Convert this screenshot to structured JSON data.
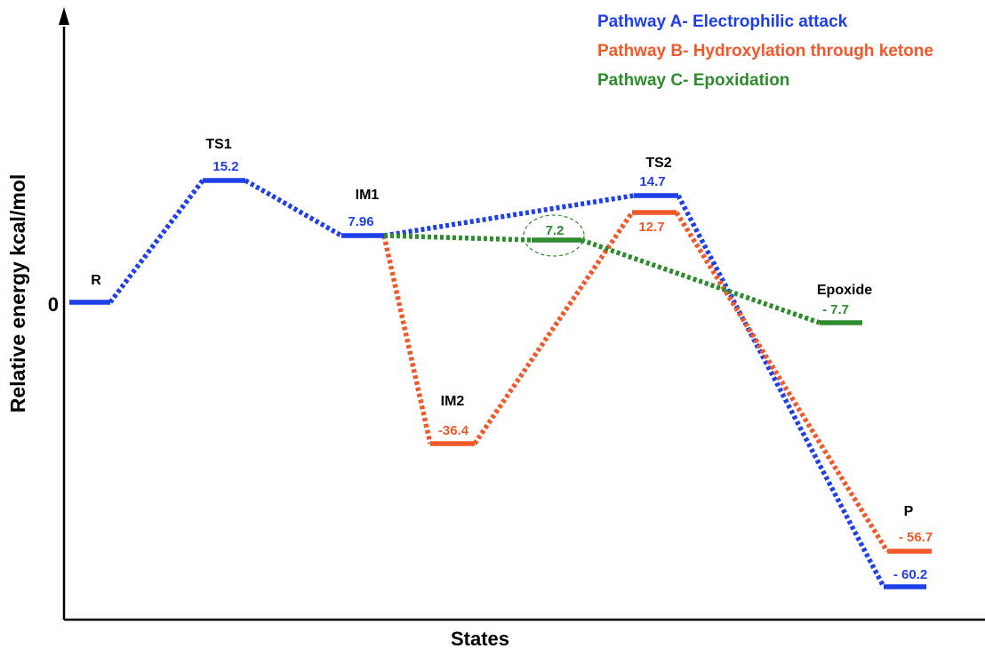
{
  "axes": {
    "ylabel": "Relative energy kcal/mol",
    "xlabel": "States",
    "zero_tick": "0"
  },
  "legend": [
    {
      "text": "Pathway A- Electrophilic attack",
      "color": "#1f3fe8"
    },
    {
      "text": "Pathway B- Hydroxylation through ketone",
      "color": "#f05a2a"
    },
    {
      "text": "Pathway C- Epoxidation",
      "color": "#2e8b2e"
    }
  ],
  "colors": {
    "A": "#1f3fe8",
    "B": "#f05a2a",
    "C": "#2e8b2e",
    "axis": "#000000"
  },
  "states": {
    "R": {
      "name": "R",
      "energy": ""
    },
    "TS1": {
      "name": "TS1",
      "energy": "15.2"
    },
    "IM1": {
      "name": "IM1",
      "energy": "7.96"
    },
    "IM2": {
      "name": "IM2",
      "energy": "-36.4"
    },
    "C_int": {
      "name": "",
      "energy": "7.2"
    },
    "TS2_A": {
      "name": "TS2",
      "energy": "14.7"
    },
    "TS2_B": {
      "name": "",
      "energy": "12.7"
    },
    "Epoxide": {
      "name": "Epoxide",
      "energy": "- 7.7"
    },
    "P_B": {
      "name": "P",
      "energy": "- 56.7"
    },
    "P_A": {
      "name": "",
      "energy": "- 60.2"
    }
  },
  "pathways": {
    "A": [
      "R",
      "TS1",
      "IM1",
      "TS2_A",
      "P_A"
    ],
    "B": [
      "IM1",
      "IM2",
      "TS2_B",
      "P_B"
    ],
    "C": [
      "IM1",
      "C_int",
      "Epoxide"
    ]
  }
}
